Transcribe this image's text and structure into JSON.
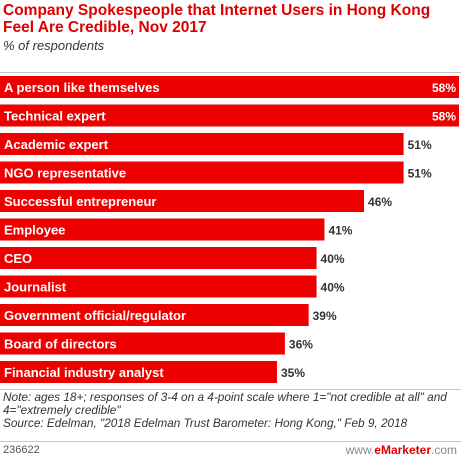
{
  "header": {
    "title": "Company Spokespeople that Internet Users in Hong Kong Feel Are Credible, Nov 2017",
    "subtitle": "% of respondents"
  },
  "chart_data": {
    "type": "bar",
    "orientation": "horizontal",
    "categories": [
      "A person like themselves",
      "Technical expert",
      "Academic expert",
      "NGO representative",
      "Successful entrepreneur",
      "Employee",
      "CEO",
      "Journalist",
      "Government official/regulator",
      "Board of directors",
      "Financial industry analyst"
    ],
    "values": [
      58,
      58,
      51,
      51,
      46,
      41,
      40,
      40,
      39,
      36,
      35
    ],
    "labels": [
      "58%",
      "58%",
      "51%",
      "51%",
      "46%",
      "41%",
      "40%",
      "40%",
      "39%",
      "36%",
      "35%"
    ],
    "unit": "%",
    "xlim": [
      0,
      58
    ],
    "bar_color": "#ee0000",
    "grid": false,
    "legend": "none"
  },
  "notes": {
    "note": "Note: ages 18+; responses of 3-4 on a 4-point scale where 1=\"not credible at all\" and 4=\"extremely credible\"",
    "source": "Source: Edelman, \"2018 Edelman Trust Barometer: Hong Kong,\" Feb 9, 2018"
  },
  "footer": {
    "chart_id": "236622",
    "logo_prefix": "www.",
    "logo_brand": "eMarketer",
    "logo_suffix": ".com"
  }
}
